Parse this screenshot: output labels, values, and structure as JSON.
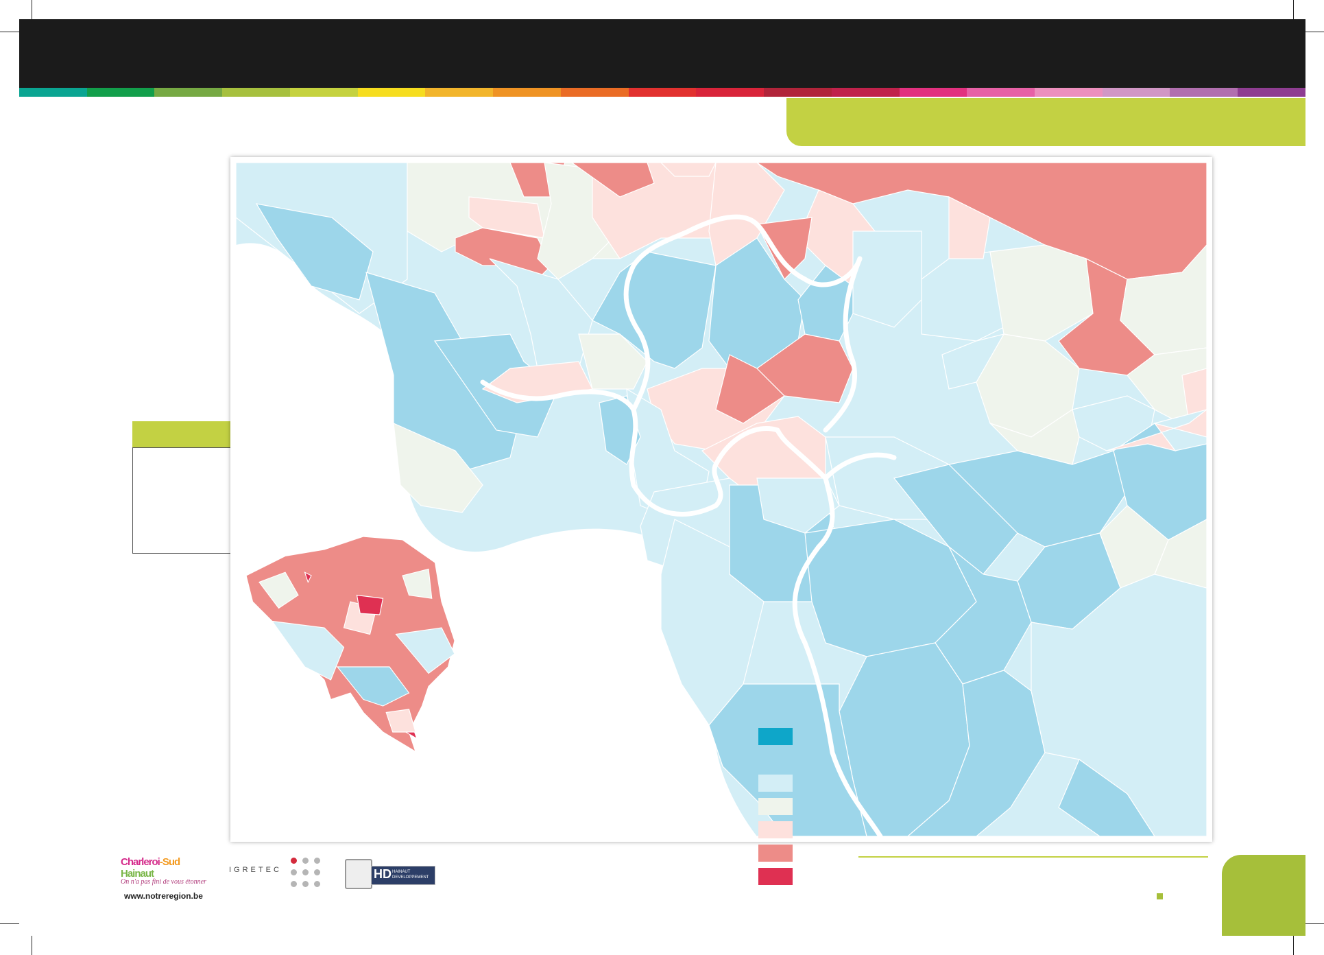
{
  "header": {
    "strip_colors": [
      "#0aa592",
      "#129f4b",
      "#76a943",
      "#a6c03e",
      "#c5d23f",
      "#f6dd1f",
      "#f2b52c",
      "#ef9324",
      "#ea6c25",
      "#e2312f",
      "#d9243a",
      "#b1243a",
      "#c0224b",
      "#e2317f",
      "#e761a6",
      "#ec8fbd",
      "#d197c5",
      "#b16faf",
      "#8e3d91"
    ],
    "title_tab_color": "#c3d143"
  },
  "map": {
    "class_colors": [
      "#0ea6c9",
      "#9dd6ea",
      "#d3eef6",
      "#eff4ec",
      "#fde1dd",
      "#ed8c88",
      "#df3052"
    ],
    "inset": "belgium-overview"
  },
  "footer": {
    "logos": {
      "charleroi": {
        "brand_parts": [
          "Charleroi",
          "-Sud",
          " Hainaut"
        ],
        "brand_colors": [
          "#d42a8a",
          "#f39a1f",
          "#7ab648"
        ],
        "tagline": "On n'a pas fini de vous étonner",
        "url": "www.notreregion.be"
      },
      "igretec": {
        "name": "IGRETEC"
      },
      "hainaut": {
        "letters": "HD",
        "text_line1": "HAINAUT",
        "text_line2": "DEVELOPPEMENT"
      }
    }
  }
}
